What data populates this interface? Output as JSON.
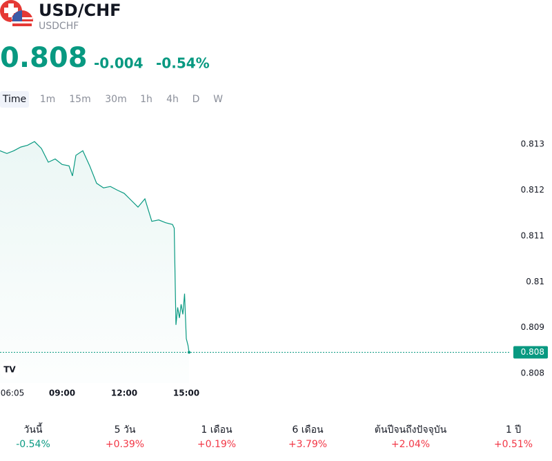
{
  "header": {
    "title": "USD/CHF",
    "symbol": "USDCHF",
    "price": "0.808",
    "change": "-0.004",
    "change_percent": "-0.54%"
  },
  "timeframes": [
    "Time",
    "1m",
    "15m",
    "30m",
    "1h",
    "4h",
    "D",
    "W"
  ],
  "chart_data": {
    "type": "line",
    "color": "#089981",
    "x": [
      "06:00",
      "06:20",
      "06:40",
      "07:00",
      "07:20",
      "07:40",
      "08:00",
      "08:20",
      "08:40",
      "09:00",
      "09:20",
      "09:30",
      "09:40",
      "10:00",
      "10:20",
      "10:40",
      "11:00",
      "11:20",
      "11:40",
      "12:00",
      "12:20",
      "12:40",
      "13:00",
      "13:20",
      "13:40",
      "14:00",
      "14:20",
      "14:25",
      "14:30",
      "14:35",
      "14:40",
      "14:45",
      "14:50",
      "14:55",
      "15:00",
      "15:05",
      "15:08"
    ],
    "series": [
      {
        "name": "USDCHF",
        "color": "#089981",
        "values": [
          0.81286,
          0.8128,
          0.81286,
          0.81294,
          0.81298,
          0.81306,
          0.81291,
          0.81261,
          0.81268,
          0.81256,
          0.81253,
          0.81231,
          0.81276,
          0.81286,
          0.81253,
          0.81215,
          0.81205,
          0.81208,
          0.812,
          0.81193,
          0.81178,
          0.81163,
          0.81181,
          0.81132,
          0.81135,
          0.81129,
          0.81125,
          0.81117,
          0.80906,
          0.80944,
          0.80921,
          0.80951,
          0.80929,
          0.80974,
          0.80876,
          0.80861,
          0.80846
        ]
      }
    ],
    "last": {
      "value": 0.80846,
      "label": "0.808"
    },
    "ylim": [
      0.80779,
      0.81374
    ],
    "yticks": [
      0.808,
      0.809,
      0.81,
      0.811,
      0.812,
      0.813
    ],
    "xticks": [
      "06:05",
      "09:00",
      "12:00",
      "15:00"
    ]
  },
  "performance": [
    {
      "label": "วันนี้",
      "value": "-0.54%"
    },
    {
      "label": "5 วัน",
      "value": "+0.39%"
    },
    {
      "label": "1 เดือน",
      "value": "+0.19%"
    },
    {
      "label": "6 เดือน",
      "value": "+3.79%"
    },
    {
      "label": "ต้นปีจนถึงปัจจุบัน",
      "value": "+2.04%"
    },
    {
      "label": "1 ปี",
      "value": "+0.51%"
    }
  ]
}
